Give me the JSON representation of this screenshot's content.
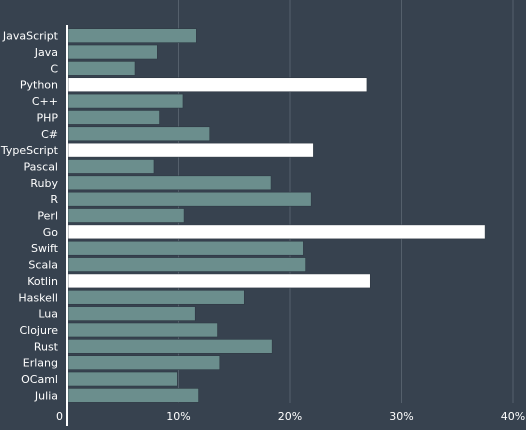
{
  "chart_data": {
    "type": "bar",
    "orientation": "horizontal",
    "categories": [
      "JavaScript",
      "Java",
      "C",
      "Python",
      "C++",
      "PHP",
      "C#",
      "TypeScript",
      "Pascal",
      "Ruby",
      "R",
      "Perl",
      "Go",
      "Swift",
      "Scala",
      "Kotlin",
      "Haskell",
      "Lua",
      "Clojure",
      "Rust",
      "Erlang",
      "OCaml",
      "Julia"
    ],
    "values": [
      11.6,
      8.1,
      6.1,
      26.9,
      10.4,
      8.3,
      12.8,
      22.1,
      7.8,
      18.3,
      21.9,
      10.5,
      37.5,
      21.2,
      21.4,
      27.2,
      15.9,
      11.5,
      13.5,
      18.4,
      13.7,
      9.9,
      11.8
    ],
    "highlighted": [
      "Python",
      "TypeScript",
      "Go",
      "Kotlin"
    ],
    "xlim": [
      0,
      40
    ],
    "xticks": [
      0,
      10,
      20,
      30,
      40
    ],
    "xtick_labels": [
      "0",
      "10%",
      "20%",
      "30%",
      "40%"
    ],
    "grid": true,
    "colors": {
      "background": "#37424f",
      "bar": "#6b8e8d",
      "bar_highlight": "#ffffff",
      "gridline": "#55606c",
      "axis": "#ffffff",
      "text": "#ffffff"
    }
  }
}
